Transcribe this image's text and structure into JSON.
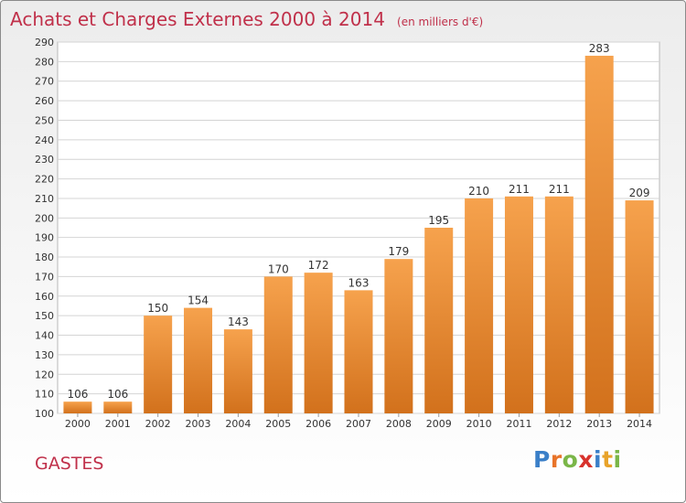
{
  "header": {
    "title": "Achats et Charges Externes 2000 à 2014",
    "subtitle": "(en milliers d'€)"
  },
  "location": "GASTES",
  "logo": {
    "letters": [
      {
        "char": "P",
        "color": "#3a7fc8"
      },
      {
        "char": "r",
        "color": "#e8742a"
      },
      {
        "char": "o",
        "color": "#7ab648"
      },
      {
        "char": "x",
        "color": "#d8322c"
      },
      {
        "char": "i",
        "color": "#3a7fc8"
      },
      {
        "char": "t",
        "color": "#e8a32a"
      },
      {
        "char": "i",
        "color": "#7ab648"
      }
    ]
  },
  "chart_data": {
    "type": "bar",
    "title": "Achats et Charges Externes 2000 à 2014",
    "subtitle": "(en milliers d'€)",
    "categories": [
      "2000",
      "2001",
      "2002",
      "2003",
      "2004",
      "2005",
      "2006",
      "2007",
      "2008",
      "2009",
      "2010",
      "2011",
      "2012",
      "2013",
      "2014"
    ],
    "values": [
      106,
      106,
      150,
      154,
      143,
      170,
      172,
      163,
      179,
      195,
      210,
      211,
      211,
      283,
      209
    ],
    "ylim": [
      100,
      290
    ],
    "ytick_step": 10,
    "grid": true,
    "data_labels": true,
    "bar_color_top": "#f6a24d",
    "bar_color_bottom": "#d2711c"
  }
}
